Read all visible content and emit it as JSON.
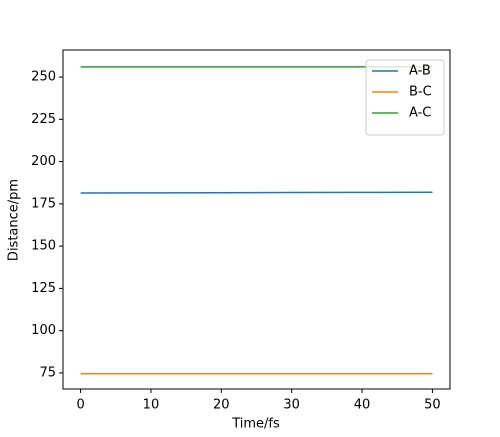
{
  "chart_data": {
    "type": "line",
    "x": [
      0,
      10,
      20,
      30,
      40,
      50
    ],
    "series": [
      {
        "name": "A-B",
        "color": "#1f77b4",
        "values": [
          181.4,
          181.5,
          181.6,
          181.7,
          181.8,
          181.9
        ]
      },
      {
        "name": "B-C",
        "color": "#ff7f0e",
        "values": [
          74.5,
          74.5,
          74.5,
          74.5,
          74.5,
          74.5
        ]
      },
      {
        "name": "A-C",
        "color": "#2ca02c",
        "values": [
          256,
          256,
          256,
          256,
          256,
          256
        ]
      }
    ],
    "xlabel": "Time/fs",
    "ylabel": "Distance/pm",
    "xlim": [
      -2.5,
      52.5
    ],
    "ylim": [
      65.5,
      266
    ],
    "xticks": [
      0,
      10,
      20,
      30,
      40,
      50
    ],
    "yticks": [
      75,
      100,
      125,
      150,
      175,
      200,
      225,
      250
    ],
    "legend": "upper right",
    "grid": false
  }
}
